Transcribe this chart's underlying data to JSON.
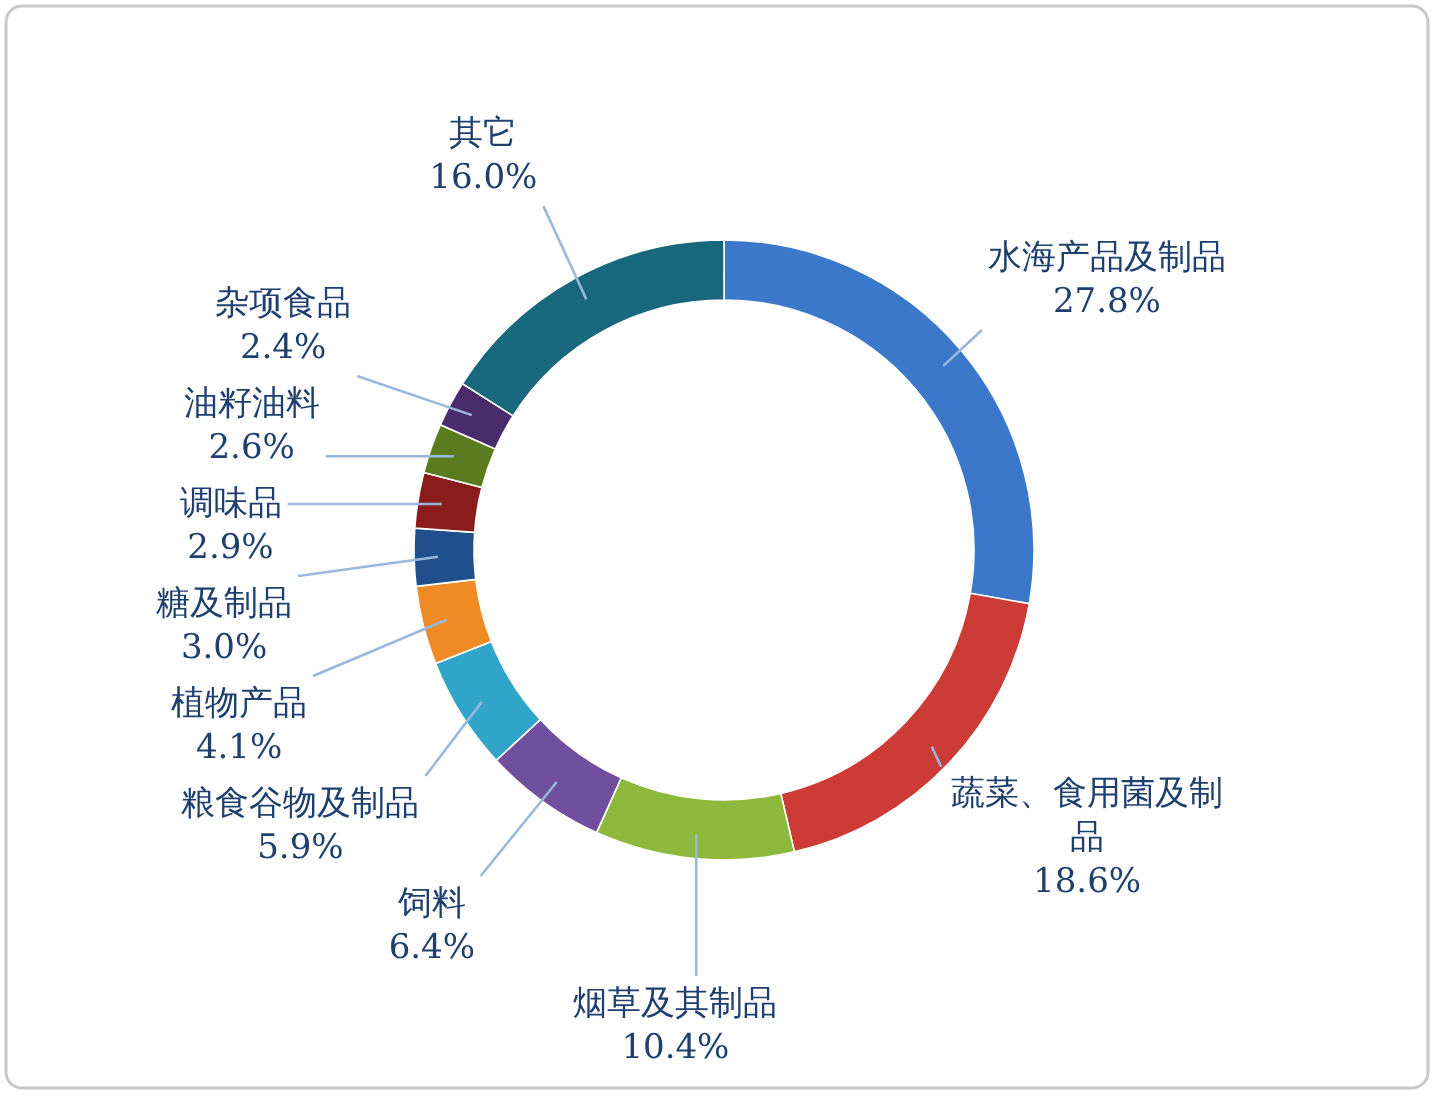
{
  "chart_data": {
    "type": "donut",
    "categories": [
      "水海产品及制品",
      "蔬菜、食用菌及制品",
      "烟草及其制品",
      "饲料",
      "粮食谷物及制品",
      "植物产品",
      "糖及制品",
      "调味品",
      "油籽油料",
      "杂项食品",
      "其它"
    ],
    "values": [
      27.8,
      18.6,
      10.4,
      6.4,
      5.9,
      4.1,
      3.0,
      2.9,
      2.6,
      2.4,
      16.0
    ],
    "value_labels": [
      "27.8%",
      "18.6%",
      "10.4%",
      "6.4%",
      "5.9%",
      "4.1%",
      "3.0%",
      "2.9%",
      "2.6%",
      "2.4%",
      "16.0%"
    ],
    "colors": [
      "#3b78c9",
      "#cc3b35",
      "#8cb83b",
      "#6f4f9e",
      "#31a5c9",
      "#ef8a25",
      "#1f4f8c",
      "#8a1c1c",
      "#5b7b1f",
      "#4a2c6c",
      "#17687c"
    ]
  }
}
